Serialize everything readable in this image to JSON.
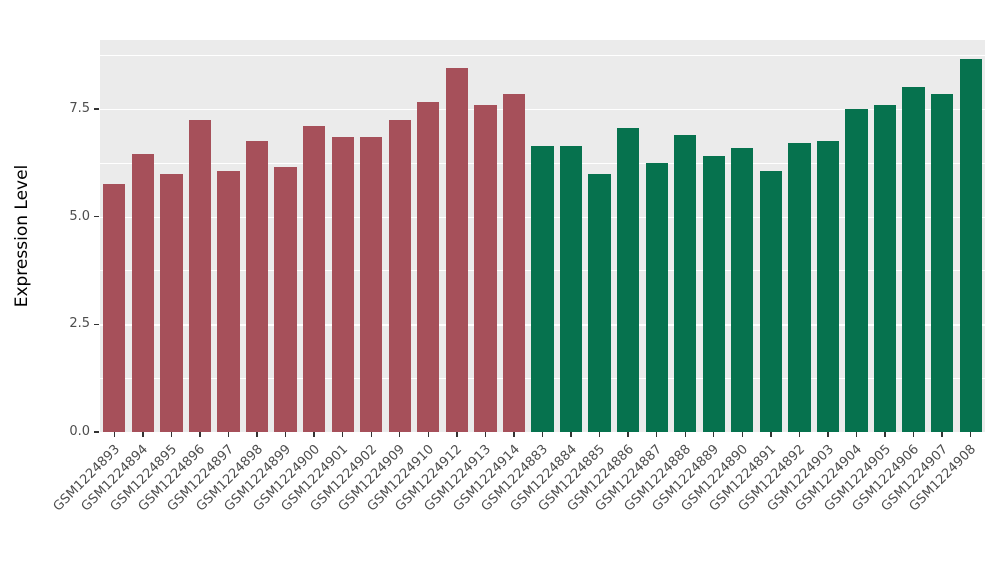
{
  "chart_data": {
    "type": "bar",
    "title": "",
    "xlabel": "",
    "ylabel": "Expression Level",
    "ylim": [
      0,
      9.1
    ],
    "yticks": [
      0.0,
      2.5,
      5.0,
      7.5
    ],
    "ytick_labels": [
      "0.0",
      "2.5",
      "5.0",
      "7.5"
    ],
    "minor_gridlines": [
      1.25,
      3.75,
      6.25,
      8.75
    ],
    "grid": "on",
    "legend": "none",
    "panel_background": "#EBEBEB",
    "group_colors": {
      "group1": "#A6505A",
      "group2": "#06724E"
    },
    "bars": [
      {
        "label": "GSM1224893",
        "value": 5.75,
        "group": "group1"
      },
      {
        "label": "GSM1224894",
        "value": 6.45,
        "group": "group1"
      },
      {
        "label": "GSM1224895",
        "value": 6.0,
        "group": "group1"
      },
      {
        "label": "GSM1224896",
        "value": 7.25,
        "group": "group1"
      },
      {
        "label": "GSM1224897",
        "value": 6.05,
        "group": "group1"
      },
      {
        "label": "GSM1224898",
        "value": 6.75,
        "group": "group1"
      },
      {
        "label": "GSM1224899",
        "value": 6.15,
        "group": "group1"
      },
      {
        "label": "GSM1224900",
        "value": 7.1,
        "group": "group1"
      },
      {
        "label": "GSM1224901",
        "value": 6.85,
        "group": "group1"
      },
      {
        "label": "GSM1224902",
        "value": 6.85,
        "group": "group1"
      },
      {
        "label": "GSM1224909",
        "value": 7.25,
        "group": "group1"
      },
      {
        "label": "GSM1224910",
        "value": 7.65,
        "group": "group1"
      },
      {
        "label": "GSM1224912",
        "value": 8.45,
        "group": "group1"
      },
      {
        "label": "GSM1224913",
        "value": 7.6,
        "group": "group1"
      },
      {
        "label": "GSM1224914",
        "value": 7.85,
        "group": "group1"
      },
      {
        "label": "GSM1224883",
        "value": 6.65,
        "group": "group2"
      },
      {
        "label": "GSM1224884",
        "value": 6.65,
        "group": "group2"
      },
      {
        "label": "GSM1224885",
        "value": 6.0,
        "group": "group2"
      },
      {
        "label": "GSM1224886",
        "value": 7.05,
        "group": "group2"
      },
      {
        "label": "GSM1224887",
        "value": 6.25,
        "group": "group2"
      },
      {
        "label": "GSM1224888",
        "value": 6.9,
        "group": "group2"
      },
      {
        "label": "GSM1224889",
        "value": 6.4,
        "group": "group2"
      },
      {
        "label": "GSM1224890",
        "value": 6.6,
        "group": "group2"
      },
      {
        "label": "GSM1224891",
        "value": 6.05,
        "group": "group2"
      },
      {
        "label": "GSM1224892",
        "value": 6.7,
        "group": "group2"
      },
      {
        "label": "GSM1224903",
        "value": 6.75,
        "group": "group2"
      },
      {
        "label": "GSM1224904",
        "value": 7.5,
        "group": "group2"
      },
      {
        "label": "GSM1224905",
        "value": 7.6,
        "group": "group2"
      },
      {
        "label": "GSM1224906",
        "value": 8.0,
        "group": "group2"
      },
      {
        "label": "GSM1224907",
        "value": 7.85,
        "group": "group2"
      },
      {
        "label": "GSM1224908",
        "value": 8.65,
        "group": "group2"
      }
    ]
  }
}
